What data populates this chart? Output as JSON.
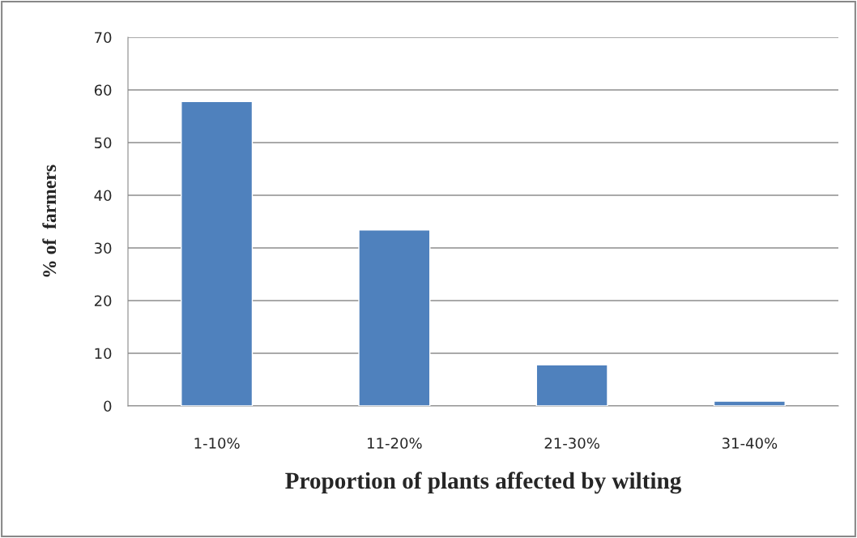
{
  "chart_data": {
    "type": "bar",
    "xlabel": "Proportion of plants affected by wilting",
    "ylabel": "% of  farmers",
    "categories": [
      "1-10%",
      "11-20%",
      "21-30%",
      "31-40%"
    ],
    "values": [
      57.8,
      33.4,
      7.8,
      0.9
    ],
    "color": "#4f81bd",
    "ylim": [
      0,
      70
    ],
    "yticks": [
      0,
      10,
      20,
      30,
      40,
      50,
      60,
      70
    ],
    "grid": "y"
  }
}
